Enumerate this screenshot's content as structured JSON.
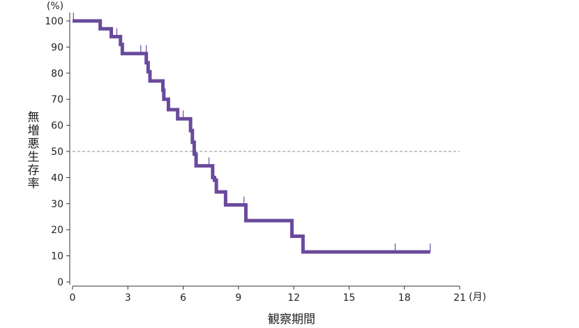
{
  "chart_data": {
    "type": "line",
    "subtype": "kaplan-meier-step",
    "xlabel": "観察期間",
    "ylabel": "無増悪生存率",
    "x_unit": "(月)",
    "y_unit": "(%)",
    "xlim": [
      0,
      21
    ],
    "ylim": [
      0,
      100
    ],
    "xticks": [
      "0",
      "3",
      "6",
      "9",
      "12",
      "15",
      "18",
      "21"
    ],
    "yticks": [
      "0",
      "10",
      "20",
      "30",
      "40",
      "50",
      "60",
      "70",
      "80",
      "90",
      "100"
    ],
    "grid": false,
    "reference_line": {
      "y": 50,
      "style": "dashed"
    },
    "series": [
      {
        "color": "#6a4a9c",
        "steps": [
          [
            0,
            100
          ],
          [
            1.5,
            97
          ],
          [
            2.1,
            94
          ],
          [
            2.6,
            91
          ],
          [
            2.7,
            87.5
          ],
          [
            4.0,
            84
          ],
          [
            4.1,
            80.5
          ],
          [
            4.2,
            77
          ],
          [
            4.9,
            73.5
          ],
          [
            4.95,
            70
          ],
          [
            5.2,
            66
          ],
          [
            5.7,
            62.5
          ],
          [
            6.4,
            58
          ],
          [
            6.5,
            53.5
          ],
          [
            6.6,
            49
          ],
          [
            6.7,
            44.5
          ],
          [
            7.6,
            40
          ],
          [
            7.7,
            39
          ],
          [
            7.8,
            34.5
          ],
          [
            8.3,
            29.5
          ],
          [
            9.4,
            23.5
          ],
          [
            11.9,
            17.5
          ],
          [
            12.5,
            11.5
          ],
          [
            19.4,
            11.5
          ]
        ],
        "censored": [
          [
            0.05,
            100
          ],
          [
            2.4,
            94
          ],
          [
            2.6,
            91
          ],
          [
            3.7,
            87.5
          ],
          [
            4.0,
            87.5
          ],
          [
            6.0,
            62.5
          ],
          [
            7.4,
            44.5
          ],
          [
            9.3,
            29.5
          ],
          [
            17.5,
            11.5
          ],
          [
            19.4,
            11.5
          ]
        ]
      }
    ]
  }
}
